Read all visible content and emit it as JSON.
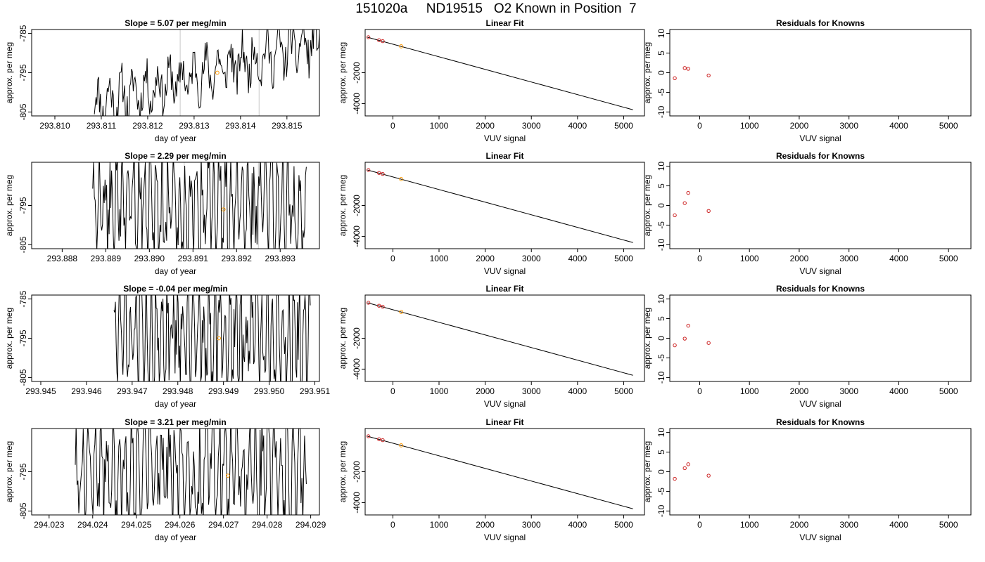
{
  "figure_title": "151020a     ND19515   O2 Known in Position  7",
  "colors": {
    "line": "#000000",
    "ref_line": "#c8c8c8",
    "point_red": "#cc2222",
    "point_orange": "#ff9900"
  },
  "chart_data": [
    {
      "type": "line",
      "row": 1,
      "col": 1,
      "title": "Slope =  5.07  per meg/min",
      "xlabel": "day of year",
      "ylabel": "approx. per meg",
      "xlim": [
        293.8095,
        293.8157
      ],
      "ylim": [
        -806,
        -784
      ],
      "xticks": [
        293.81,
        293.811,
        293.812,
        293.813,
        293.814,
        293.815
      ],
      "xtick_labels": [
        "293.810",
        "293.811",
        "293.812",
        "293.813",
        "293.814",
        "293.815"
      ],
      "yticks": [
        -785,
        -795,
        -805
      ],
      "ytick_labels": [
        "-785",
        "-795",
        "-805"
      ],
      "vlines": [
        293.8127,
        293.8144
      ],
      "trace_start": 293.81085,
      "trace_end": 293.8157,
      "trace_seed": 11,
      "trace_mode": "rising",
      "marker": {
        "x": 293.8135,
        "y": -795
      }
    },
    {
      "type": "scatter",
      "row": 1,
      "col": 2,
      "title": "Linear Fit",
      "xlabel": "VUV signal",
      "ylabel": "approx. per meg",
      "xlim": [
        -600,
        5450
      ],
      "ylim": [
        -4800,
        800
      ],
      "xticks": [
        0,
        1000,
        2000,
        3000,
        4000,
        5000
      ],
      "xtick_labels": [
        "0",
        "1000",
        "2000",
        "3000",
        "4000",
        "5000"
      ],
      "yticks": [
        -2000,
        -4000
      ],
      "ytick_labels": [
        "-2000",
        "-4000"
      ],
      "fit_line": {
        "x": [
          -550,
          5200
        ],
        "y": [
          300,
          -4400
        ]
      },
      "points": [
        {
          "x": -530,
          "y": 300
        },
        {
          "x": -300,
          "y": 110
        },
        {
          "x": -220,
          "y": 45
        }
      ],
      "marker": {
        "x": 180,
        "y": -290
      }
    },
    {
      "type": "scatter",
      "row": 1,
      "col": 3,
      "title": "Residuals for Knowns",
      "xlabel": "VUV signal",
      "ylabel": "approx. per meg",
      "xlim": [
        -600,
        5450
      ],
      "ylim": [
        -11,
        11
      ],
      "xticks": [
        0,
        1000,
        2000,
        3000,
        4000,
        5000
      ],
      "xtick_labels": [
        "0",
        "1000",
        "2000",
        "3000",
        "4000",
        "5000"
      ],
      "yticks": [
        10,
        5,
        0,
        -5,
        -10
      ],
      "ytick_labels": [
        "10",
        "5",
        "0",
        "-5",
        "-10"
      ],
      "points": [
        {
          "x": -500,
          "y": -1.4
        },
        {
          "x": -300,
          "y": 1.2
        },
        {
          "x": -230,
          "y": 1.0
        },
        {
          "x": 180,
          "y": -0.7
        }
      ]
    },
    {
      "type": "line",
      "row": 2,
      "col": 1,
      "title": "Slope =  2.29  per meg/min",
      "xlabel": "day of year",
      "ylabel": "approx. per meg",
      "xlim": [
        293.8873,
        293.8939
      ],
      "ylim": [
        -806,
        -784
      ],
      "xticks": [
        293.888,
        293.889,
        293.89,
        293.891,
        293.892,
        293.893
      ],
      "xtick_labels": [
        "293.888",
        "293.889",
        "293.890",
        "293.891",
        "293.892",
        "293.893"
      ],
      "yticks": [
        -795,
        -805
      ],
      "ytick_labels": [
        "-795",
        "-805"
      ],
      "vlines": [
        293.8908,
        293.8925
      ],
      "trace_start": 293.8887,
      "trace_end": 293.8936,
      "trace_seed": 23,
      "trace_mode": "wild",
      "marker": {
        "x": 293.8917,
        "y": -796
      }
    },
    {
      "type": "scatter",
      "row": 2,
      "col": 2,
      "title": "Linear Fit",
      "xlabel": "VUV signal",
      "ylabel": "approx. per meg",
      "xlim": [
        -600,
        5450
      ],
      "ylim": [
        -4800,
        800
      ],
      "xticks": [
        0,
        1000,
        2000,
        3000,
        4000,
        5000
      ],
      "xtick_labels": [
        "0",
        "1000",
        "2000",
        "3000",
        "4000",
        "5000"
      ],
      "yticks": [
        -2000,
        -4000
      ],
      "ytick_labels": [
        "-2000",
        "-4000"
      ],
      "fit_line": {
        "x": [
          -550,
          5200
        ],
        "y": [
          300,
          -4400
        ]
      },
      "points": [
        {
          "x": -530,
          "y": 300
        },
        {
          "x": -300,
          "y": 110
        },
        {
          "x": -220,
          "y": 45
        }
      ],
      "marker": {
        "x": 180,
        "y": -290
      }
    },
    {
      "type": "scatter",
      "row": 2,
      "col": 3,
      "title": "Residuals for Knowns",
      "xlabel": "VUV signal",
      "ylabel": "approx. per meg",
      "xlim": [
        -600,
        5450
      ],
      "ylim": [
        -11,
        11
      ],
      "xticks": [
        0,
        1000,
        2000,
        3000,
        4000,
        5000
      ],
      "xtick_labels": [
        "0",
        "1000",
        "2000",
        "3000",
        "4000",
        "5000"
      ],
      "yticks": [
        10,
        5,
        0,
        -5,
        -10
      ],
      "ytick_labels": [
        "10",
        "5",
        "0",
        "-5",
        "-10"
      ],
      "points": [
        {
          "x": -500,
          "y": -2.5
        },
        {
          "x": -300,
          "y": 0.6
        },
        {
          "x": -230,
          "y": 3.2
        },
        {
          "x": 180,
          "y": -1.4
        }
      ]
    },
    {
      "type": "line",
      "row": 3,
      "col": 1,
      "title": "Slope =  -0.04  per meg/min",
      "xlabel": "day of year",
      "ylabel": "approx. per meg",
      "xlim": [
        293.9448,
        293.9511
      ],
      "ylim": [
        -806,
        -784
      ],
      "xticks": [
        293.945,
        293.946,
        293.947,
        293.948,
        293.949,
        293.95,
        293.951
      ],
      "xtick_labels": [
        "293.945",
        "293.946",
        "293.947",
        "293.948",
        "293.949",
        "293.950",
        "293.951"
      ],
      "yticks": [
        -785,
        -795,
        -805
      ],
      "ytick_labels": [
        "-785",
        "-795",
        "-805"
      ],
      "vlines": [],
      "trace_start": 293.9466,
      "trace_end": 293.9509,
      "trace_seed": 37,
      "trace_mode": "wild",
      "marker": {
        "x": 293.9489,
        "y": -795
      }
    },
    {
      "type": "scatter",
      "row": 3,
      "col": 2,
      "title": "Linear Fit",
      "xlabel": "VUV signal",
      "ylabel": "approx. per meg",
      "xlim": [
        -600,
        5450
      ],
      "ylim": [
        -4800,
        800
      ],
      "xticks": [
        0,
        1000,
        2000,
        3000,
        4000,
        5000
      ],
      "xtick_labels": [
        "0",
        "1000",
        "2000",
        "3000",
        "4000",
        "5000"
      ],
      "yticks": [
        -2000,
        -4000
      ],
      "ytick_labels": [
        "-2000",
        "-4000"
      ],
      "fit_line": {
        "x": [
          -550,
          5200
        ],
        "y": [
          300,
          -4400
        ]
      },
      "points": [
        {
          "x": -530,
          "y": 300
        },
        {
          "x": -300,
          "y": 110
        },
        {
          "x": -220,
          "y": 45
        }
      ],
      "marker": {
        "x": 180,
        "y": -290
      }
    },
    {
      "type": "scatter",
      "row": 3,
      "col": 3,
      "title": "Residuals for Knowns",
      "xlabel": "VUV signal",
      "ylabel": "approx. per meg",
      "xlim": [
        -600,
        5450
      ],
      "ylim": [
        -11,
        11
      ],
      "xticks": [
        0,
        1000,
        2000,
        3000,
        4000,
        5000
      ],
      "xtick_labels": [
        "0",
        "1000",
        "2000",
        "3000",
        "4000",
        "5000"
      ],
      "yticks": [
        10,
        5,
        0,
        -5,
        -10
      ],
      "ytick_labels": [
        "10",
        "5",
        "0",
        "-5",
        "-10"
      ],
      "points": [
        {
          "x": -500,
          "y": -1.8
        },
        {
          "x": -300,
          "y": -0.1
        },
        {
          "x": -230,
          "y": 3.2
        },
        {
          "x": 180,
          "y": -1.2
        }
      ]
    },
    {
      "type": "line",
      "row": 4,
      "col": 1,
      "title": "Slope =  3.21  per meg/min",
      "xlabel": "day of year",
      "ylabel": "approx. per meg",
      "xlim": [
        294.0226,
        294.0292
      ],
      "ylim": [
        -806,
        -784
      ],
      "xticks": [
        294.023,
        294.024,
        294.025,
        294.026,
        294.027,
        294.028,
        294.029
      ],
      "xtick_labels": [
        "294.023",
        "294.024",
        "294.025",
        "294.026",
        "294.027",
        "294.028",
        "294.029"
      ],
      "yticks": [
        -795,
        -805
      ],
      "ytick_labels": [
        "-795",
        "-805"
      ],
      "vlines": [],
      "trace_start": 294.0236,
      "trace_end": 294.0289,
      "trace_seed": 53,
      "trace_mode": "wild",
      "marker": {
        "x": 294.0271,
        "y": -796
      }
    },
    {
      "type": "scatter",
      "row": 4,
      "col": 2,
      "title": "Linear Fit",
      "xlabel": "VUV signal",
      "ylabel": "approx. per meg",
      "xlim": [
        -600,
        5450
      ],
      "ylim": [
        -4800,
        800
      ],
      "xticks": [
        0,
        1000,
        2000,
        3000,
        4000,
        5000
      ],
      "xtick_labels": [
        "0",
        "1000",
        "2000",
        "3000",
        "4000",
        "5000"
      ],
      "yticks": [
        -2000,
        -4000
      ],
      "ytick_labels": [
        "-2000",
        "-4000"
      ],
      "fit_line": {
        "x": [
          -550,
          5200
        ],
        "y": [
          300,
          -4400
        ]
      },
      "points": [
        {
          "x": -530,
          "y": 300
        },
        {
          "x": -300,
          "y": 110
        },
        {
          "x": -220,
          "y": 45
        }
      ],
      "marker": {
        "x": 180,
        "y": -290
      }
    },
    {
      "type": "scatter",
      "row": 4,
      "col": 3,
      "title": "Residuals for Knowns",
      "xlabel": "VUV signal",
      "ylabel": "approx. per meg",
      "xlim": [
        -600,
        5450
      ],
      "ylim": [
        -11,
        11
      ],
      "xticks": [
        0,
        1000,
        2000,
        3000,
        4000,
        5000
      ],
      "xtick_labels": [
        "0",
        "1000",
        "2000",
        "3000",
        "4000",
        "5000"
      ],
      "yticks": [
        10,
        5,
        0,
        -5,
        -10
      ],
      "ytick_labels": [
        "10",
        "5",
        "0",
        "-5",
        "-10"
      ],
      "points": [
        {
          "x": -500,
          "y": -1.8
        },
        {
          "x": -300,
          "y": 0.9
        },
        {
          "x": -230,
          "y": 1.9
        },
        {
          "x": 180,
          "y": -1.0
        }
      ]
    }
  ]
}
